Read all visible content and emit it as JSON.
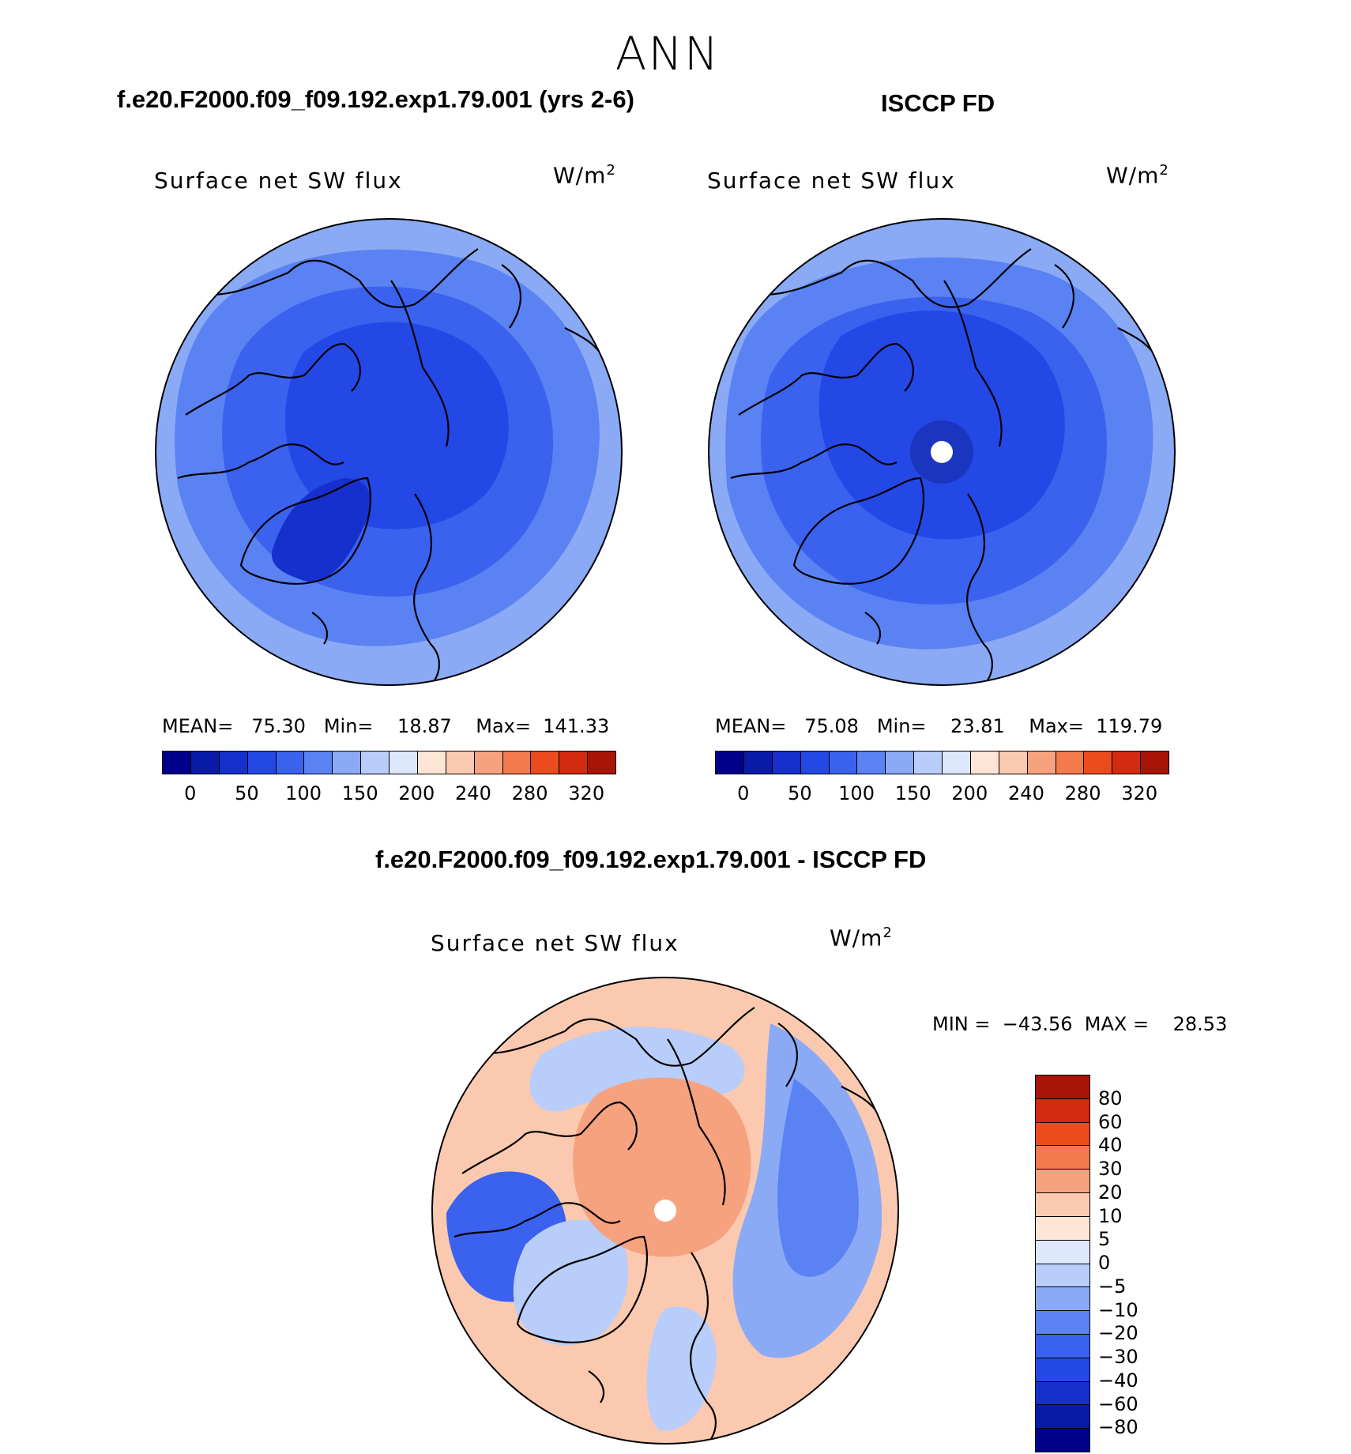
{
  "season": "ANN",
  "panels": {
    "model": {
      "case_title": "f.e20.F2000.f09_f09.192.exp1.79.001 (yrs 2-6)",
      "variable_label": "Surface net SW flux",
      "units_base": "W/m",
      "units_exp": "2",
      "stats": "MEAN=   75.30   Min=    18.87    Max=  141.33",
      "colorbar_ticks": [
        "0",
        "50",
        "100",
        "150",
        "200",
        "240",
        "280",
        "320"
      ]
    },
    "obs": {
      "case_title": "ISCCP FD",
      "variable_label": "Surface net SW flux",
      "units_base": "W/m",
      "units_exp": "2",
      "stats": "MEAN=   75.08   Min=    23.81    Max=  119.79",
      "colorbar_ticks": [
        "0",
        "50",
        "100",
        "150",
        "200",
        "240",
        "280",
        "320"
      ]
    },
    "diff": {
      "case_title": "f.e20.F2000.f09_f09.192.exp1.79.001 - ISCCP FD",
      "variable_label": "Surface net SW flux",
      "units_base": "W/m",
      "units_exp": "2",
      "stats": "MIN =  −43.56  MAX =    28.53",
      "colorbar_ticks": [
        "80",
        "60",
        "40",
        "30",
        "20",
        "10",
        "5",
        "0",
        "−5",
        "−10",
        "−20",
        "−30",
        "−40",
        "−60",
        "−80"
      ]
    }
  },
  "colors": {
    "abs_scale": [
      "#00008b",
      "#0a1aa8",
      "#1530cc",
      "#2448e6",
      "#3a62ef",
      "#5a82f2",
      "#8aaaf6",
      "#b8cdfa",
      "#dde8fc",
      "#fde6d6",
      "#fbc9b0",
      "#f7a27e",
      "#f27a4d",
      "#ec4b1d",
      "#d42a0f",
      "#a81508",
      "#7a0000"
    ],
    "diff_scale": [
      "#7a0000",
      "#a81508",
      "#d42a0f",
      "#ec4b1d",
      "#f27a4d",
      "#f7a27e",
      "#fbc9b0",
      "#fde6d6",
      "#dde8fc",
      "#b8cdfa",
      "#8aaaf6",
      "#5a82f2",
      "#3a62ef",
      "#2448e6",
      "#1530cc",
      "#0a1aa8",
      "#00008b"
    ],
    "model_map": {
      "outer": "#8aaaf6",
      "mid": "#5a82f2",
      "inner": "#3a62ef",
      "core": "#2448e6",
      "greenland": "#1530cc"
    },
    "obs_map": {
      "outer": "#8aaaf6",
      "mid": "#5a82f2",
      "inner": "#3a62ef",
      "core": "#2448e6",
      "greenland": "#1a35c0"
    },
    "diff_map": {
      "base": "#fbc9b0",
      "warm": "#f7a27e",
      "coolA": "#b8cdfa",
      "coolB": "#8aaaf6",
      "coolC": "#5a82f2",
      "coolD": "#3a62ef",
      "near": "#dde8fc"
    }
  }
}
